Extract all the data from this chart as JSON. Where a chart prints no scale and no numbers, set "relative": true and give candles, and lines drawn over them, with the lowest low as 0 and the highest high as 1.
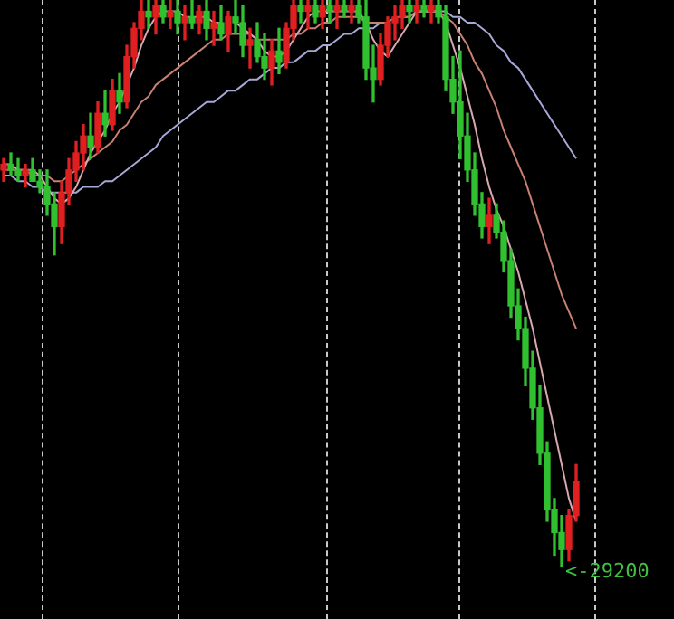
{
  "chart_data": {
    "type": "candlestick",
    "relative": true,
    "annotations": [
      "<-29200"
    ],
    "categories": [
      null,
      null,
      null,
      null,
      null,
      null,
      null,
      null,
      null,
      null,
      null,
      null,
      null,
      null,
      null,
      null,
      null,
      null,
      null,
      null,
      null,
      null,
      null,
      null,
      null,
      null,
      null,
      null,
      null,
      null,
      null,
      null,
      null,
      null,
      null,
      null,
      null,
      null,
      null,
      null,
      null,
      null,
      null,
      null,
      null,
      null,
      null,
      null,
      null,
      null,
      null,
      null,
      null,
      null,
      null,
      null,
      null,
      null,
      null,
      null,
      null,
      null,
      null,
      null,
      null,
      null,
      null,
      null,
      null,
      null,
      null,
      null,
      null,
      null,
      null,
      null,
      null,
      null,
      null,
      null
    ],
    "ohlc": [
      [
        0.7,
        0.72,
        0.68,
        0.71
      ],
      [
        0.71,
        0.73,
        0.69,
        0.7
      ],
      [
        0.7,
        0.72,
        0.68,
        0.69
      ],
      [
        0.69,
        0.71,
        0.67,
        0.7
      ],
      [
        0.7,
        0.72,
        0.68,
        0.68
      ],
      [
        0.68,
        0.7,
        0.66,
        0.67
      ],
      [
        0.67,
        0.7,
        0.62,
        0.64
      ],
      [
        0.64,
        0.66,
        0.55,
        0.6
      ],
      [
        0.6,
        0.68,
        0.57,
        0.66
      ],
      [
        0.66,
        0.72,
        0.64,
        0.7
      ],
      [
        0.7,
        0.75,
        0.68,
        0.73
      ],
      [
        0.73,
        0.78,
        0.7,
        0.76
      ],
      [
        0.76,
        0.8,
        0.72,
        0.74
      ],
      [
        0.74,
        0.82,
        0.73,
        0.8
      ],
      [
        0.8,
        0.84,
        0.76,
        0.78
      ],
      [
        0.78,
        0.86,
        0.77,
        0.84
      ],
      [
        0.84,
        0.87,
        0.8,
        0.82
      ],
      [
        0.82,
        0.92,
        0.81,
        0.9
      ],
      [
        0.9,
        0.96,
        0.88,
        0.95
      ],
      [
        0.95,
        1.0,
        0.93,
        0.98
      ],
      [
        0.98,
        1.0,
        0.95,
        0.97
      ],
      [
        0.97,
        1.0,
        0.94,
        0.99
      ],
      [
        0.99,
        1.0,
        0.96,
        0.97
      ],
      [
        0.97,
        1.0,
        0.95,
        0.98
      ],
      [
        0.98,
        1.0,
        0.94,
        0.96
      ],
      [
        0.96,
        0.99,
        0.93,
        0.97
      ],
      [
        0.97,
        1.0,
        0.95,
        0.96
      ],
      [
        0.96,
        0.99,
        0.94,
        0.98
      ],
      [
        0.98,
        1.0,
        0.93,
        0.95
      ],
      [
        0.95,
        0.98,
        0.92,
        0.96
      ],
      [
        0.96,
        0.99,
        0.93,
        0.94
      ],
      [
        0.94,
        0.98,
        0.91,
        0.97
      ],
      [
        0.97,
        1.0,
        0.94,
        0.96
      ],
      [
        0.96,
        0.99,
        0.9,
        0.92
      ],
      [
        0.92,
        0.95,
        0.88,
        0.93
      ],
      [
        0.93,
        0.96,
        0.89,
        0.9
      ],
      [
        0.9,
        0.94,
        0.86,
        0.88
      ],
      [
        0.88,
        0.93,
        0.85,
        0.91
      ],
      [
        0.91,
        0.95,
        0.87,
        0.89
      ],
      [
        0.89,
        0.96,
        0.88,
        0.95
      ],
      [
        0.95,
        1.0,
        0.93,
        0.99
      ],
      [
        0.99,
        1.0,
        0.96,
        0.98
      ],
      [
        0.98,
        1.0,
        0.95,
        0.99
      ],
      [
        0.99,
        1.0,
        0.96,
        0.97
      ],
      [
        0.97,
        1.0,
        0.95,
        0.99
      ],
      [
        0.99,
        1.0,
        0.96,
        0.98
      ],
      [
        0.98,
        1.0,
        0.95,
        0.99
      ],
      [
        0.99,
        1.0,
        0.97,
        0.98
      ],
      [
        0.98,
        1.0,
        0.96,
        0.99
      ],
      [
        0.99,
        1.0,
        0.96,
        0.97
      ],
      [
        0.97,
        1.0,
        0.86,
        0.88
      ],
      [
        0.88,
        0.92,
        0.82,
        0.86
      ],
      [
        0.86,
        0.94,
        0.85,
        0.92
      ],
      [
        0.92,
        0.97,
        0.9,
        0.96
      ],
      [
        0.96,
        0.99,
        0.93,
        0.97
      ],
      [
        0.97,
        1.0,
        0.95,
        0.99
      ],
      [
        0.99,
        1.0,
        0.96,
        0.98
      ],
      [
        0.98,
        1.0,
        0.96,
        0.99
      ],
      [
        0.99,
        1.0,
        0.97,
        0.98
      ],
      [
        0.98,
        1.0,
        0.96,
        0.99
      ],
      [
        0.99,
        1.0,
        0.96,
        0.97
      ],
      [
        0.97,
        0.99,
        0.84,
        0.86
      ],
      [
        0.86,
        0.9,
        0.8,
        0.82
      ],
      [
        0.82,
        0.91,
        0.72,
        0.76
      ],
      [
        0.76,
        0.8,
        0.68,
        0.7
      ],
      [
        0.7,
        0.73,
        0.62,
        0.64
      ],
      [
        0.64,
        0.66,
        0.58,
        0.6
      ],
      [
        0.6,
        0.65,
        0.57,
        0.62
      ],
      [
        0.62,
        0.64,
        0.58,
        0.59
      ],
      [
        0.59,
        0.61,
        0.52,
        0.54
      ],
      [
        0.54,
        0.56,
        0.44,
        0.46
      ],
      [
        0.46,
        0.49,
        0.4,
        0.42
      ],
      [
        0.42,
        0.44,
        0.32,
        0.35
      ],
      [
        0.35,
        0.38,
        0.26,
        0.28
      ],
      [
        0.28,
        0.32,
        0.18,
        0.2
      ],
      [
        0.2,
        0.22,
        0.08,
        0.1
      ],
      [
        0.1,
        0.12,
        0.02,
        0.06
      ],
      [
        0.06,
        0.09,
        0.0,
        0.03
      ],
      [
        0.03,
        0.1,
        0.01,
        0.09
      ],
      [
        0.09,
        0.18,
        0.08,
        0.15
      ]
    ],
    "colors": [
      "#e02020",
      "#30c030",
      "#30c030",
      "#e02020",
      "#30c030",
      "#30c030",
      "#30c030",
      "#30c030",
      "#e02020",
      "#e02020",
      "#e02020",
      "#e02020",
      "#30c030",
      "#e02020",
      "#30c030",
      "#e02020",
      "#30c030",
      "#e02020",
      "#e02020",
      "#e02020",
      "#30c030",
      "#e02020",
      "#30c030",
      "#e02020",
      "#30c030",
      "#e02020",
      "#30c030",
      "#e02020",
      "#30c030",
      "#e02020",
      "#30c030",
      "#e02020",
      "#30c030",
      "#30c030",
      "#e02020",
      "#30c030",
      "#30c030",
      "#e02020",
      "#30c030",
      "#e02020",
      "#e02020",
      "#30c030",
      "#e02020",
      "#30c030",
      "#e02020",
      "#30c030",
      "#e02020",
      "#30c030",
      "#e02020",
      "#30c030",
      "#30c030",
      "#30c030",
      "#e02020",
      "#e02020",
      "#e02020",
      "#e02020",
      "#30c030",
      "#e02020",
      "#30c030",
      "#e02020",
      "#30c030",
      "#30c030",
      "#30c030",
      "#30c030",
      "#30c030",
      "#30c030",
      "#30c030",
      "#e02020",
      "#30c030",
      "#30c030",
      "#30c030",
      "#30c030",
      "#30c030",
      "#30c030",
      "#30c030",
      "#30c030",
      "#30c030",
      "#30c030",
      "#e02020",
      "#e02020"
    ],
    "series": [
      {
        "type": "line",
        "color": "#d8a8b0",
        "values": [
          0.71,
          0.71,
          0.7,
          0.7,
          0.7,
          0.69,
          0.67,
          0.65,
          0.64,
          0.65,
          0.67,
          0.7,
          0.73,
          0.75,
          0.77,
          0.8,
          0.82,
          0.85,
          0.88,
          0.92,
          0.95,
          0.97,
          0.98,
          0.98,
          0.98,
          0.97,
          0.97,
          0.97,
          0.97,
          0.96,
          0.96,
          null,
          0.96,
          0.95,
          0.94,
          0.93,
          0.91,
          0.9,
          0.9,
          0.91,
          0.93,
          0.95,
          0.97,
          0.98,
          0.98,
          0.98,
          0.98,
          0.98,
          0.98,
          0.98,
          0.96,
          0.93,
          0.91,
          0.9,
          0.92,
          0.94,
          0.96,
          0.98,
          0.98,
          0.98,
          0.98,
          0.96,
          0.92,
          0.88,
          0.83,
          0.78,
          0.72,
          0.67,
          0.63,
          0.6,
          0.56,
          0.52,
          0.47,
          0.42,
          0.36,
          0.3,
          0.24,
          0.18,
          0.12,
          0.08
        ]
      },
      {
        "type": "line",
        "color": "#c88070",
        "values": [
          0.7,
          0.7,
          0.7,
          0.7,
          0.69,
          0.69,
          0.69,
          0.68,
          0.68,
          0.69,
          0.7,
          0.71,
          0.72,
          0.73,
          0.74,
          0.75,
          0.77,
          0.78,
          0.8,
          0.82,
          0.83,
          0.85,
          0.86,
          0.87,
          0.88,
          0.89,
          0.9,
          0.91,
          0.92,
          0.93,
          0.93,
          0.94,
          0.94,
          0.94,
          0.94,
          0.93,
          0.93,
          0.93,
          0.93,
          0.93,
          0.94,
          0.94,
          0.95,
          0.95,
          0.96,
          0.96,
          0.97,
          0.97,
          0.97,
          0.97,
          0.96,
          0.96,
          0.96,
          0.96,
          0.97,
          0.97,
          0.97,
          0.98,
          0.98,
          0.98,
          0.98,
          0.97,
          0.96,
          0.94,
          0.92,
          0.89,
          0.87,
          0.84,
          0.81,
          0.77,
          0.74,
          0.71,
          0.68,
          0.64,
          0.6,
          0.56,
          0.52,
          0.48,
          0.45,
          0.42
        ]
      },
      {
        "type": "line",
        "color": "#a8a8d8",
        "values": [
          0.69,
          0.69,
          0.68,
          0.68,
          0.67,
          0.67,
          0.66,
          0.66,
          0.66,
          0.66,
          0.66,
          0.67,
          0.67,
          0.67,
          0.68,
          0.68,
          0.69,
          0.7,
          0.71,
          0.72,
          0.73,
          0.74,
          0.76,
          0.77,
          0.78,
          0.79,
          0.8,
          0.81,
          0.82,
          0.82,
          0.83,
          0.84,
          0.84,
          0.85,
          0.86,
          0.86,
          0.87,
          0.88,
          0.88,
          0.89,
          0.89,
          0.9,
          0.91,
          0.91,
          0.92,
          0.92,
          0.93,
          0.94,
          0.94,
          0.95,
          0.95,
          0.95,
          0.96,
          null,
          null,
          0.97,
          0.97,
          0.98,
          0.98,
          0.98,
          0.98,
          0.98,
          0.97,
          0.97,
          0.96,
          0.96,
          0.95,
          0.94,
          0.92,
          0.91,
          0.89,
          0.88,
          0.86,
          0.84,
          0.82,
          0.8,
          0.78,
          0.76,
          0.74,
          0.72
        ]
      }
    ]
  }
}
